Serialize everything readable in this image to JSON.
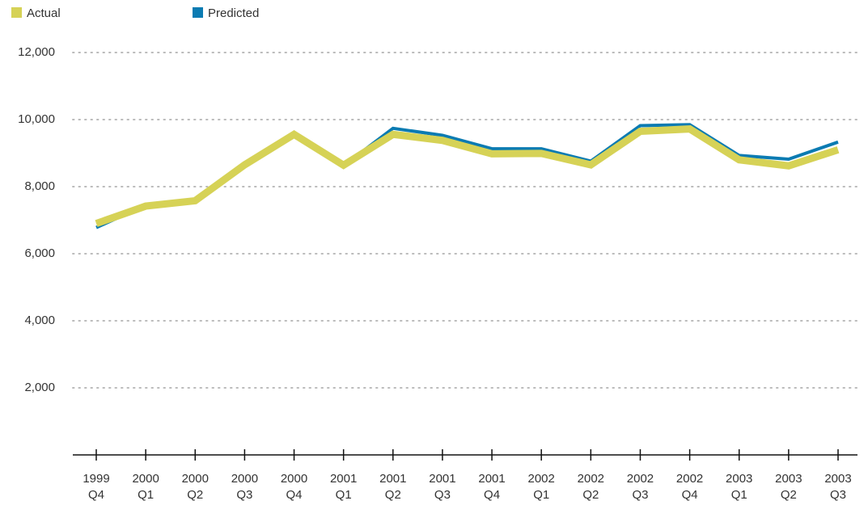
{
  "chart_data": {
    "type": "line",
    "categories": [
      "1999\nQ4",
      "2000\nQ1",
      "2000\nQ2",
      "2000\nQ3",
      "2000\nQ4",
      "2001\nQ1",
      "2001\nQ2",
      "2001\nQ3",
      "2001\nQ4",
      "2002\nQ1",
      "2002\nQ2",
      "2002\nQ3",
      "2002\nQ4",
      "2003\nQ1",
      "2003\nQ2",
      "2003\nQ3"
    ],
    "series": [
      {
        "name": "Actual",
        "color": "#d6d256",
        "values": [
          6900,
          7420,
          7580,
          8650,
          9560,
          8640,
          9560,
          9380,
          8980,
          8990,
          8650,
          9650,
          9720,
          8800,
          8620,
          9100
        ]
      },
      {
        "name": "Predicted",
        "color": "#0b7bb2",
        "values": [
          6780,
          7450,
          7620,
          8680,
          9620,
          8620,
          9740,
          9530,
          9130,
          9130,
          8760,
          9820,
          9850,
          8930,
          8820,
          9330
        ]
      }
    ],
    "ylim": [
      0,
      12000
    ],
    "yticks": [
      {
        "value": 2000,
        "label": "2,000"
      },
      {
        "value": 4000,
        "label": "4,000"
      },
      {
        "value": 6000,
        "label": "6,000"
      },
      {
        "value": 8000,
        "label": "8,000"
      },
      {
        "value": 10000,
        "label": "10,000"
      },
      {
        "value": 12000,
        "label": "12,000"
      }
    ],
    "grid": true
  }
}
